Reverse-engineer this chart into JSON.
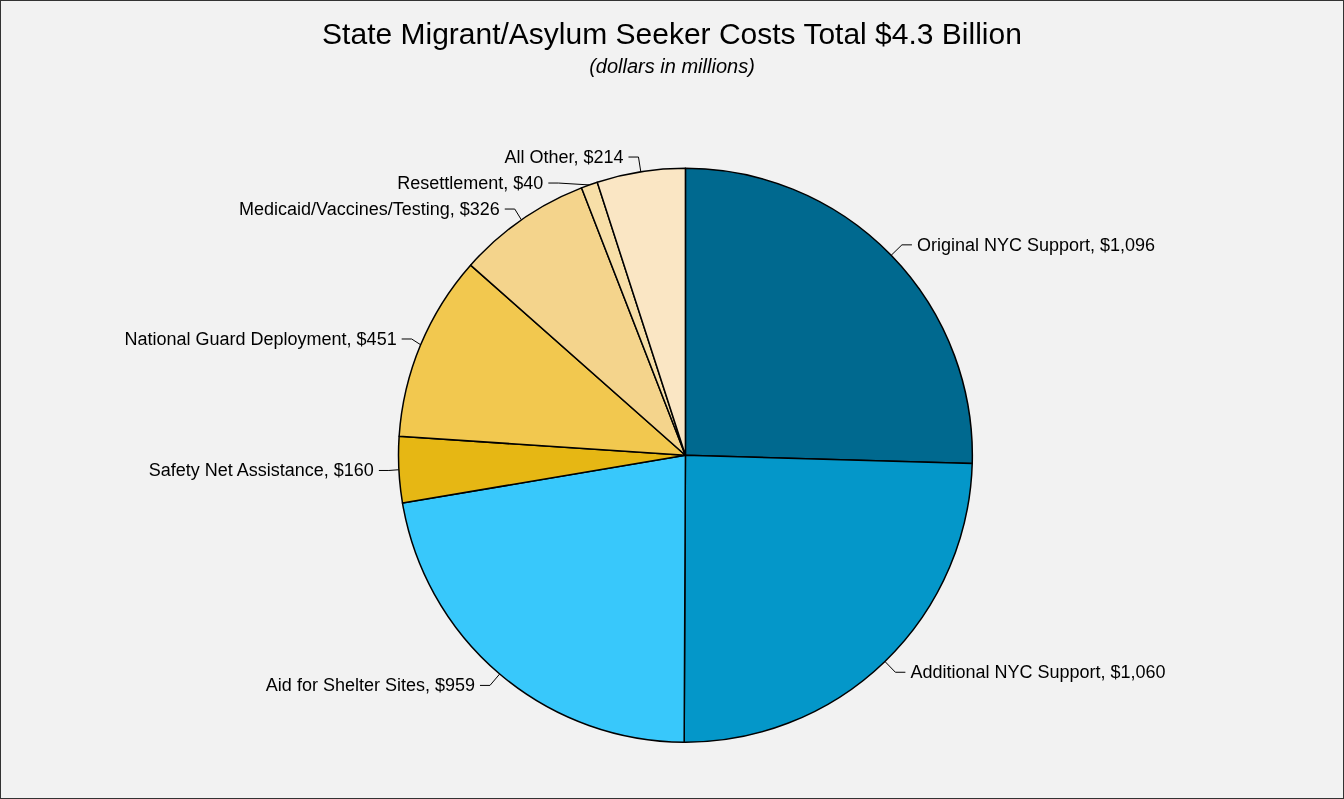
{
  "chart_data": {
    "type": "pie",
    "title": "State Migrant/Asylum Seeker Costs Total $4.3 Billion",
    "subtitle": "(dollars in millions)",
    "categories": [
      "Original NYC Support",
      "Additional NYC Support",
      "Aid for Shelter Sites",
      "Safety Net Assistance",
      "National Guard Deployment",
      "Medicaid/Vaccines/Testing",
      "Resettlement",
      "All Other"
    ],
    "values": [
      1096,
      1060,
      959,
      160,
      451,
      326,
      40,
      214
    ],
    "value_labels": [
      "$1,096",
      "$1,060",
      "$959",
      "$160",
      "$451",
      "$326",
      "$40",
      "$214"
    ],
    "colors": [
      "#00698f",
      "#0497c9",
      "#38c8fb",
      "#e6b714",
      "#f2c84f",
      "#f4d48c",
      "#f7dfa8",
      "#fae6c4"
    ],
    "legend": false
  }
}
